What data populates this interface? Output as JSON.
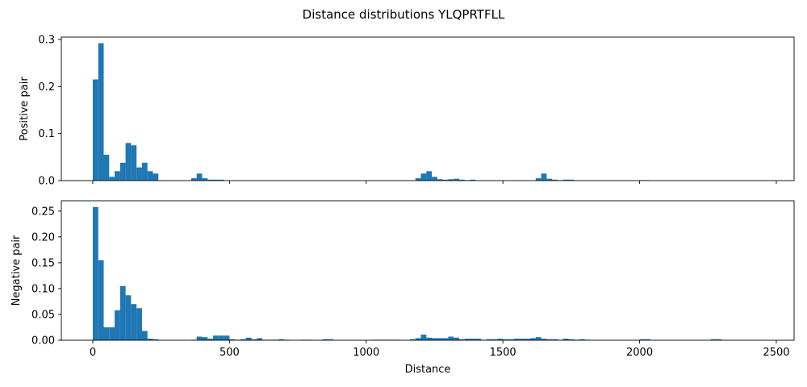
{
  "title": "Distance distributions YLQPRTFLL",
  "colors": {
    "bar": "#1f77b4",
    "axis": "#000000",
    "background": "#ffffff"
  },
  "chart_data": [
    {
      "type": "bar",
      "ylabel": "Positive pair",
      "xlabel": "",
      "xlim": [
        -115,
        2565
      ],
      "ylim": [
        0,
        0.305
      ],
      "xticks": [
        0,
        500,
        1000,
        1500,
        2000,
        2500
      ],
      "xtick_labels": [],
      "yticks": [
        0,
        0.1,
        0.2,
        0.3
      ],
      "ytick_labels": [
        "0.0",
        "0.1",
        "0.2",
        "0.3"
      ],
      "bin_width": 20,
      "bins_start": [
        0,
        20,
        40,
        60,
        80,
        100,
        120,
        140,
        160,
        180,
        200,
        220,
        360,
        380,
        400,
        420,
        440,
        460,
        1180,
        1200,
        1220,
        1240,
        1260,
        1280,
        1300,
        1320,
        1340,
        1360,
        1380,
        1620,
        1640,
        1660,
        1680,
        1700,
        1720,
        1740,
        2000,
        2020,
        2260,
        2280
      ],
      "values": [
        0.215,
        0.292,
        0.055,
        0.008,
        0.02,
        0.038,
        0.08,
        0.075,
        0.028,
        0.038,
        0.02,
        0.015,
        0.005,
        0.015,
        0.005,
        0.002,
        0.002,
        0.002,
        0.005,
        0.015,
        0.02,
        0.008,
        0.003,
        0.002,
        0.003,
        0.004,
        0.002,
        0.001,
        0.002,
        0.005,
        0.015,
        0.004,
        0.002,
        0.001,
        0.002,
        0.002,
        0.001,
        0.001,
        0.0005,
        0.0005
      ],
      "grid": false
    },
    {
      "type": "bar",
      "ylabel": "Negative pair",
      "xlabel": "Distance",
      "xlim": [
        -115,
        2565
      ],
      "ylim": [
        0,
        0.27
      ],
      "xticks": [
        0,
        500,
        1000,
        1500,
        2000,
        2500
      ],
      "xtick_labels": [
        "0",
        "500",
        "1000",
        "1500",
        "2000",
        "2500"
      ],
      "yticks": [
        0,
        0.05,
        0.1,
        0.15,
        0.2,
        0.25
      ],
      "ytick_labels": [
        "0.00",
        "0.05",
        "0.10",
        "0.15",
        "0.20",
        "0.25"
      ],
      "bin_width": 20,
      "bins_start": [
        0,
        20,
        40,
        60,
        80,
        100,
        120,
        140,
        160,
        180,
        200,
        220,
        360,
        380,
        400,
        420,
        440,
        460,
        480,
        500,
        520,
        540,
        560,
        580,
        600,
        620,
        640,
        660,
        680,
        700,
        760,
        780,
        840,
        860,
        1020,
        1040,
        1060,
        1080,
        1100,
        1160,
        1180,
        1200,
        1220,
        1240,
        1260,
        1280,
        1300,
        1320,
        1340,
        1360,
        1380,
        1400,
        1420,
        1440,
        1460,
        1480,
        1500,
        1520,
        1540,
        1560,
        1580,
        1600,
        1620,
        1640,
        1660,
        1680,
        1700,
        1720,
        1740,
        1760,
        1780,
        1800,
        2000,
        2020,
        2260,
        2280
      ],
      "values": [
        0.258,
        0.155,
        0.025,
        0.025,
        0.058,
        0.105,
        0.087,
        0.07,
        0.062,
        0.018,
        0.003,
        0.002,
        0.001,
        0.007,
        0.006,
        0.003,
        0.009,
        0.009,
        0.009,
        0.002,
        0.001,
        0.002,
        0.005,
        0.002,
        0.004,
        0.001,
        0.001,
        0.001,
        0.002,
        0.001,
        0.001,
        0.001,
        0.002,
        0.002,
        0.001,
        0.001,
        0.001,
        0.001,
        0.001,
        0.002,
        0.004,
        0.011,
        0.005,
        0.004,
        0.004,
        0.004,
        0.007,
        0.005,
        0.002,
        0.003,
        0.003,
        0.003,
        0.001,
        0.002,
        0.002,
        0.003,
        0.002,
        0.002,
        0.003,
        0.003,
        0.003,
        0.004,
        0.006,
        0.003,
        0.002,
        0.002,
        0.001,
        0.003,
        0.002,
        0.001,
        0.002,
        0.001,
        0.002,
        0.002,
        0.002,
        0.002
      ],
      "grid": false
    }
  ]
}
